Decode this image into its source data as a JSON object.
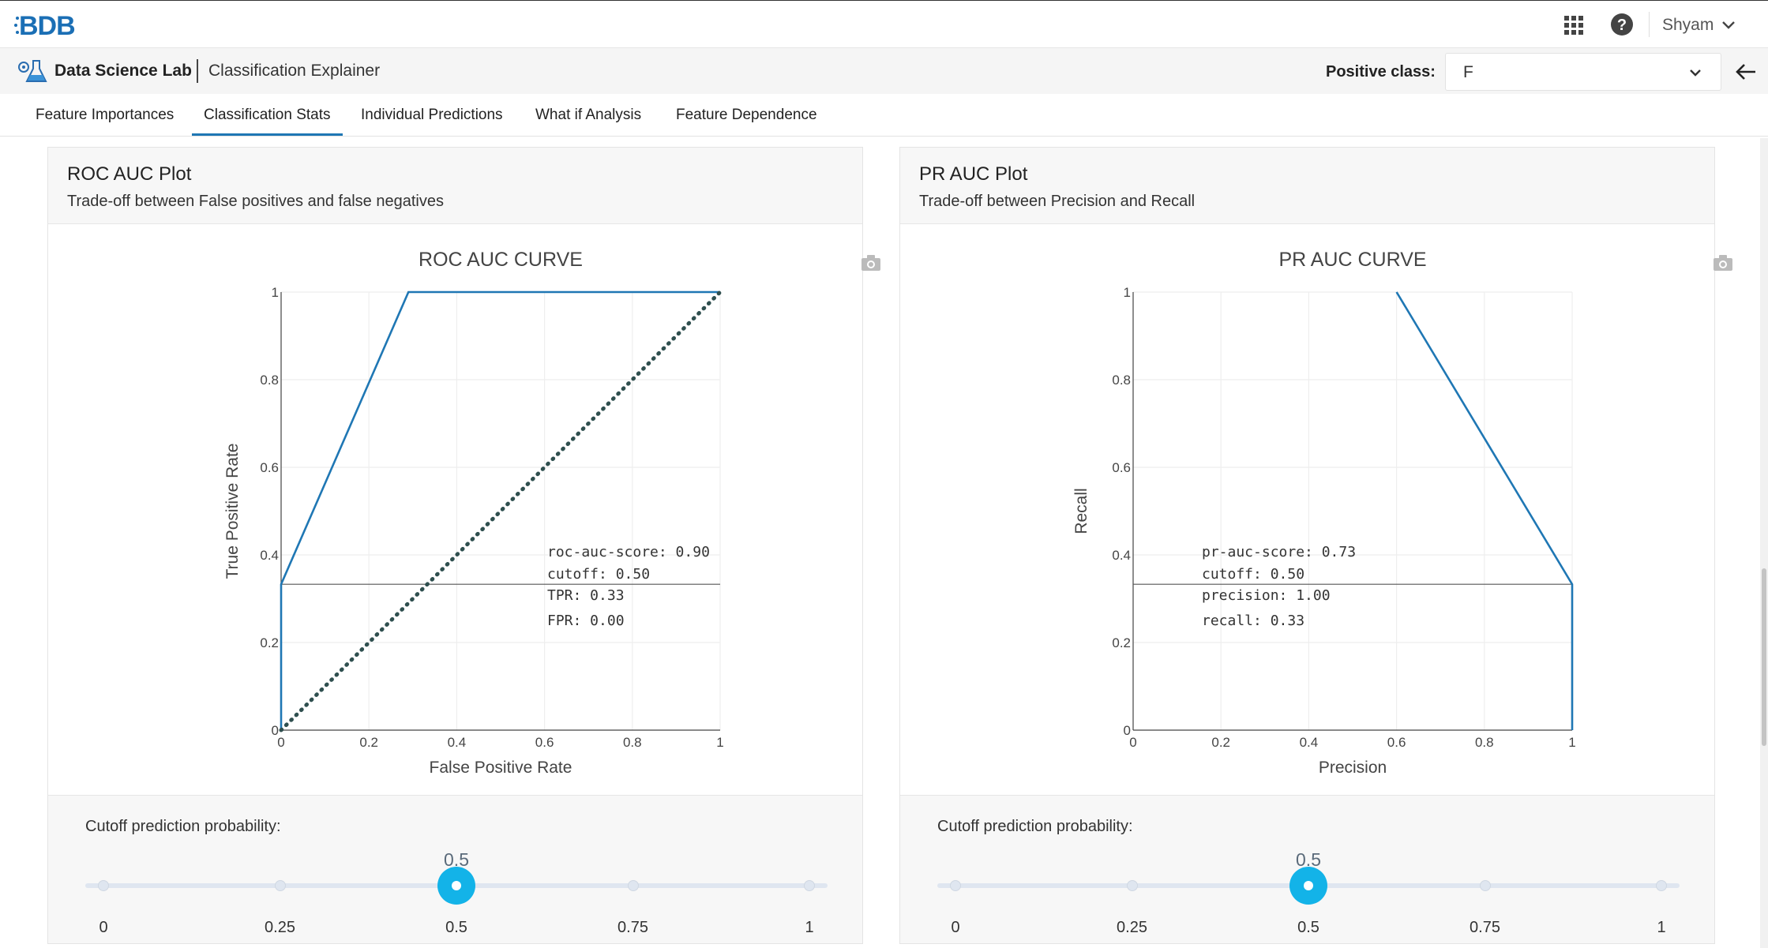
{
  "header": {
    "logo_text": "BDB",
    "user_name": "Shyam"
  },
  "subheader": {
    "app_title": "Data Science Lab",
    "page_title": "Classification Explainer",
    "positive_class_label": "Positive class:",
    "positive_class_value": "F"
  },
  "tabs": [
    {
      "label": "Feature Importances",
      "active": false
    },
    {
      "label": "Classification Stats",
      "active": true
    },
    {
      "label": "Individual Predictions",
      "active": false
    },
    {
      "label": "What if Analysis",
      "active": false
    },
    {
      "label": "Feature Dependence",
      "active": false
    }
  ],
  "cards": [
    {
      "title": "ROC AUC Plot",
      "subtitle": "Trade-off between False positives and false negatives",
      "cutoff_label": "Cutoff prediction probability:",
      "slider": {
        "value": "0.5",
        "value_num": 0.5,
        "marks": [
          "0",
          "0.25",
          "0.5",
          "0.75",
          "1"
        ]
      }
    },
    {
      "title": "PR AUC Plot",
      "subtitle": "Trade-off between Precision and Recall",
      "cutoff_label": "Cutoff prediction probability:",
      "slider": {
        "value": "0.5",
        "value_num": 0.5,
        "marks": [
          "0",
          "0.25",
          "0.5",
          "0.75",
          "1"
        ]
      }
    }
  ],
  "chart_data": [
    {
      "type": "line",
      "title": "ROC AUC CURVE",
      "xlabel": "False Positive Rate",
      "ylabel": "True Positive Rate",
      "xlim": [
        0,
        1
      ],
      "ylim": [
        0,
        1
      ],
      "xticks": [
        "0",
        "0.2",
        "0.4",
        "0.6",
        "0.8",
        "1"
      ],
      "yticks": [
        "0",
        "0.2",
        "0.4",
        "0.6",
        "0.8",
        "1"
      ],
      "series": [
        {
          "x": [
            0,
            0,
            0.29,
            1
          ],
          "y": [
            0,
            0.333,
            1,
            1
          ],
          "color": "#1f77b4"
        },
        {
          "x": [
            0,
            1
          ],
          "y": [
            0,
            1
          ],
          "color": "#2f4f4f",
          "dash": "dot"
        }
      ],
      "cutoff_line_y": 0.333,
      "annotations": [
        "roc-auc-score: 0.90",
        "cutoff: 0.50",
        "TPR: 0.33",
        "FPR: 0.00"
      ]
    },
    {
      "type": "line",
      "title": "PR AUC CURVE",
      "xlabel": "Precision",
      "ylabel": "Recall",
      "xlim": [
        0,
        1
      ],
      "ylim": [
        0,
        1
      ],
      "xticks": [
        "0",
        "0.2",
        "0.4",
        "0.6",
        "0.8",
        "1"
      ],
      "yticks": [
        "0",
        "0.2",
        "0.4",
        "0.6",
        "0.8",
        "1"
      ],
      "series": [
        {
          "x": [
            0.6,
            1,
            1
          ],
          "y": [
            1,
            0.333,
            0
          ],
          "color": "#1f77b4"
        }
      ],
      "cutoff_line_y": 0.333,
      "annotations": [
        "pr-auc-score: 0.73",
        "cutoff: 0.50",
        "precision: 1.00",
        "recall: 0.33"
      ]
    }
  ]
}
